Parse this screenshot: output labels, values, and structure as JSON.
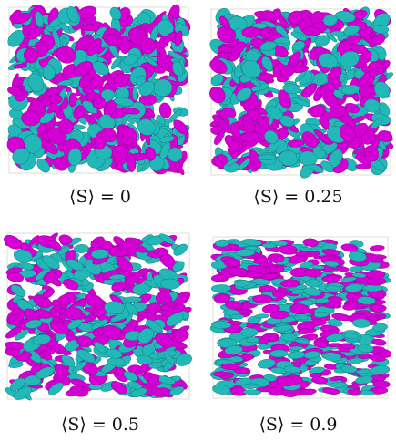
{
  "figure": {
    "colors": {
      "species_a": "#d400d4",
      "species_b": "#22b8b8",
      "box_edge": "#c8c8c8"
    },
    "panels": [
      {
        "id": "s0",
        "order_parameter": 0,
        "caption": "⟨S⟩ = 0"
      },
      {
        "id": "s025",
        "order_parameter": 0.25,
        "caption": "⟨S⟩ = 0.25"
      },
      {
        "id": "s05",
        "order_parameter": 0.5,
        "caption": "⟨S⟩ = 0.5"
      },
      {
        "id": "s09",
        "order_parameter": 0.9,
        "caption": "⟨S⟩ = 0.9"
      }
    ]
  }
}
